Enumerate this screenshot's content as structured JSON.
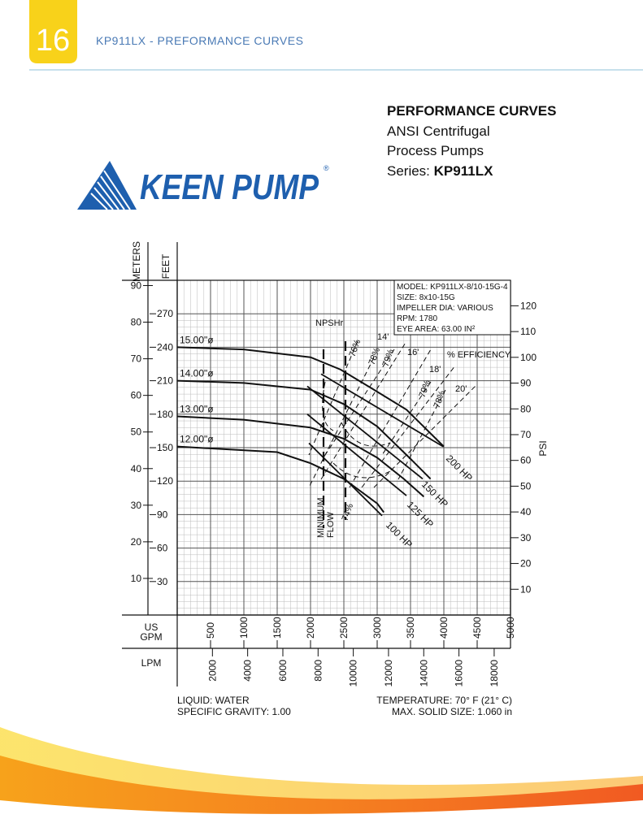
{
  "header": {
    "page_number": "16",
    "title": "KP911LX - PREFORMANCE CURVES"
  },
  "intro": {
    "heading": "PERFORMANCE CURVES",
    "line1": "ANSI Centrifugal",
    "line2": "Process Pumps",
    "series_label": "Series:",
    "series_name": "KP911LX"
  },
  "logo": {
    "text": "KEEN PUMP",
    "mark": "®"
  },
  "chart_data": {
    "type": "line",
    "x_label": [
      "US",
      "GPM"
    ],
    "y_label": "FEET",
    "xlim": [
      0,
      5000
    ],
    "xticks": [
      500,
      1000,
      1500,
      2000,
      2500,
      3000,
      3500,
      4000,
      4500,
      5000
    ],
    "ylim": [
      0,
      300
    ],
    "yticks": [
      30,
      60,
      90,
      120,
      150,
      180,
      210,
      240,
      270
    ],
    "meters_label": "METERS",
    "meters_lim": [
      0,
      91.44
    ],
    "meters_ticks": [
      10,
      20,
      30,
      40,
      50,
      60,
      70,
      80,
      90
    ],
    "psi_label": "PSI",
    "psi_lim": [
      0,
      129.9
    ],
    "psi_ticks": [
      10,
      20,
      30,
      40,
      50,
      60,
      70,
      80,
      90,
      100,
      110,
      120
    ],
    "lpm_label": "LPM",
    "lpm_lim": [
      0,
      18927
    ],
    "lpm_ticks": [
      2000,
      4000,
      6000,
      8000,
      10000,
      12000,
      14000,
      16000,
      18000
    ],
    "grid": true,
    "series": [
      {
        "name": "15.00\"ø",
        "color": "#111111",
        "x": [
          0,
          1000,
          2000,
          2450,
          2950,
          3440,
          4000
        ],
        "values": [
          240,
          238,
          231,
          220,
          202,
          184,
          151
        ]
      },
      {
        "name": "14.00\"ø",
        "color": "#111111",
        "x": [
          0,
          1000,
          2000,
          2500,
          3000,
          3500,
          3800
        ],
        "values": [
          210,
          208,
          202,
          189,
          169,
          140,
          122
        ]
      },
      {
        "name": "13.00\"ø",
        "color": "#111111",
        "x": [
          0,
          1000,
          2000,
          2500,
          3000,
          3400,
          3700
        ],
        "values": [
          178,
          175,
          168,
          158,
          141,
          122,
          106
        ]
      },
      {
        "name": "12.00\"ø",
        "color": "#111111",
        "x": [
          0,
          1500,
          2000,
          2500,
          3000,
          3100
        ],
        "values": [
          151,
          146,
          136,
          122,
          100,
          92
        ]
      }
    ],
    "hp_lines": [
      {
        "name": "200 HP",
        "x": [
          2159,
          3988
        ],
        "values": [
          216,
          151
        ]
      },
      {
        "name": "150 HP",
        "x": [
          1951,
          3683
        ],
        "values": [
          205,
          122
        ]
      },
      {
        "name": "125 HP",
        "x": [
          1951,
          3439
        ],
        "values": [
          180,
          107
        ]
      },
      {
        "name": "100 HP",
        "x": [
          1976,
          3073
        ],
        "values": [
          154,
          89
        ]
      }
    ],
    "annotations": [
      "NPSHr",
      "14'",
      "16'",
      "18'",
      "20'",
      "% EFFICIENCY",
      "76%",
      "78%",
      "79%",
      "79%",
      "78%",
      "74%",
      "MINIMUM",
      "FLOW"
    ],
    "info_box": [
      "MODEL: KP911LX-8/10-15G-4",
      "SIZE: 8x10-15G",
      "IMPELLER DIA: VARIOUS",
      "RPM: 1780",
      "EYE AREA: 63.00 IN²"
    ]
  },
  "footnotes": {
    "liquid": "LIQUID: WATER",
    "gravity": "SPECIFIC GRAVITY: 1.00",
    "temperature": "TEMPERATURE: 70° F (21° C)",
    "solid": "MAX. SOLID SIZE: 1.060 in"
  }
}
